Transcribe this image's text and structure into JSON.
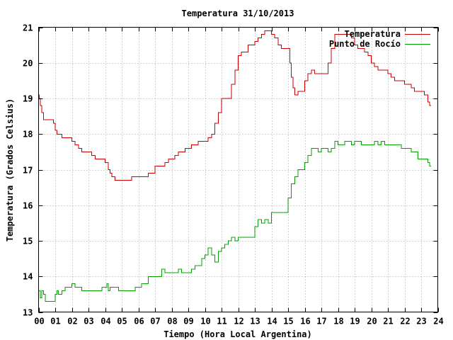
{
  "chart_data": {
    "type": "line",
    "title": "Temperatura 31/10/2013",
    "xlabel": "Tiempo (Hora Local Argentina)",
    "ylabel": "Temperatura (Grados Celsius)",
    "xlim": [
      0,
      24
    ],
    "ylim": [
      13,
      21
    ],
    "xticks": [
      "00",
      "01",
      "02",
      "03",
      "04",
      "05",
      "06",
      "07",
      "08",
      "09",
      "10",
      "11",
      "12",
      "13",
      "14",
      "15",
      "16",
      "17",
      "18",
      "19",
      "20",
      "21",
      "22",
      "23",
      "24"
    ],
    "yticks": [
      "13",
      "14",
      "15",
      "16",
      "17",
      "18",
      "19",
      "20",
      "21"
    ],
    "grid": true,
    "legend_position": "top-right",
    "series": [
      {
        "name": "Temperatura",
        "color": "#cc0000",
        "x": [
          0.0,
          0.05,
          0.1,
          0.2,
          0.3,
          0.4,
          0.5,
          0.7,
          0.9,
          1.0,
          1.1,
          1.2,
          1.4,
          1.6,
          1.8,
          2.0,
          2.2,
          2.4,
          2.6,
          2.8,
          3.0,
          3.2,
          3.4,
          3.6,
          3.8,
          4.0,
          4.2,
          4.3,
          4.4,
          4.5,
          4.6,
          4.8,
          5.0,
          5.2,
          5.4,
          5.6,
          5.8,
          6.0,
          6.2,
          6.4,
          6.6,
          6.8,
          7.0,
          7.2,
          7.4,
          7.6,
          7.8,
          8.0,
          8.2,
          8.4,
          8.6,
          8.8,
          9.0,
          9.2,
          9.4,
          9.6,
          9.8,
          10.0,
          10.2,
          10.4,
          10.6,
          10.8,
          11.0,
          11.2,
          11.4,
          11.6,
          11.8,
          12.0,
          12.2,
          12.4,
          12.6,
          12.8,
          13.0,
          13.2,
          13.4,
          13.6,
          13.8,
          14.0,
          14.2,
          14.4,
          14.6,
          14.8,
          15.0,
          15.1,
          15.2,
          15.3,
          15.4,
          15.5,
          15.6,
          15.8,
          16.0,
          16.2,
          16.4,
          16.6,
          16.8,
          17.0,
          17.2,
          17.4,
          17.6,
          17.8,
          18.0,
          18.2,
          18.4,
          18.6,
          18.8,
          19.0,
          19.2,
          19.4,
          19.6,
          19.8,
          20.0,
          20.2,
          20.4,
          20.6,
          20.8,
          21.0,
          21.2,
          21.4,
          21.6,
          21.8,
          22.0,
          22.2,
          22.4,
          22.6,
          22.8,
          23.0,
          23.2,
          23.4,
          23.5,
          23.6
        ],
        "y": [
          19.1,
          19.0,
          18.8,
          18.6,
          18.4,
          18.4,
          18.4,
          18.4,
          18.3,
          18.1,
          18.0,
          18.0,
          17.9,
          17.9,
          17.9,
          17.8,
          17.7,
          17.6,
          17.5,
          17.5,
          17.5,
          17.4,
          17.3,
          17.3,
          17.3,
          17.2,
          17.0,
          16.9,
          16.8,
          16.8,
          16.7,
          16.7,
          16.7,
          16.7,
          16.7,
          16.8,
          16.8,
          16.8,
          16.8,
          16.8,
          16.9,
          16.9,
          17.1,
          17.1,
          17.1,
          17.2,
          17.3,
          17.3,
          17.4,
          17.5,
          17.5,
          17.6,
          17.6,
          17.7,
          17.7,
          17.8,
          17.8,
          17.8,
          17.9,
          18.0,
          18.3,
          18.6,
          19.0,
          19.0,
          19.0,
          19.4,
          19.8,
          20.2,
          20.3,
          20.3,
          20.5,
          20.5,
          20.6,
          20.7,
          20.8,
          20.9,
          20.9,
          20.8,
          20.7,
          20.5,
          20.4,
          20.4,
          20.4,
          20.0,
          19.6,
          19.3,
          19.1,
          19.1,
          19.2,
          19.2,
          19.5,
          19.7,
          19.8,
          19.7,
          19.7,
          19.7,
          19.7,
          20.0,
          20.4,
          20.8,
          20.8,
          20.8,
          20.8,
          20.8,
          20.7,
          20.5,
          20.4,
          20.4,
          20.3,
          20.2,
          20.0,
          19.9,
          19.8,
          19.8,
          19.8,
          19.7,
          19.6,
          19.5,
          19.5,
          19.5,
          19.4,
          19.4,
          19.3,
          19.2,
          19.2,
          19.2,
          19.1,
          18.9,
          18.8,
          18.8
        ]
      },
      {
        "name": "Punto de Rocío",
        "color": "#00a000",
        "x": [
          0.0,
          0.1,
          0.2,
          0.3,
          0.4,
          0.5,
          0.8,
          1.0,
          1.1,
          1.2,
          1.4,
          1.6,
          1.8,
          2.0,
          2.2,
          2.4,
          2.6,
          2.8,
          3.0,
          3.2,
          3.4,
          3.6,
          3.8,
          4.0,
          4.1,
          4.2,
          4.3,
          4.4,
          4.6,
          4.8,
          5.0,
          5.2,
          5.4,
          5.6,
          5.8,
          6.0,
          6.2,
          6.4,
          6.6,
          6.8,
          7.0,
          7.2,
          7.4,
          7.6,
          7.8,
          8.0,
          8.2,
          8.4,
          8.6,
          8.8,
          9.0,
          9.2,
          9.4,
          9.6,
          9.8,
          10.0,
          10.2,
          10.4,
          10.6,
          10.8,
          11.0,
          11.2,
          11.4,
          11.6,
          11.8,
          12.0,
          12.2,
          12.4,
          12.6,
          12.8,
          13.0,
          13.2,
          13.4,
          13.6,
          13.8,
          14.0,
          14.2,
          14.4,
          14.6,
          14.8,
          15.0,
          15.2,
          15.4,
          15.6,
          15.8,
          16.0,
          16.2,
          16.4,
          16.6,
          16.8,
          17.0,
          17.2,
          17.4,
          17.6,
          17.8,
          18.0,
          18.2,
          18.4,
          18.6,
          18.8,
          19.0,
          19.2,
          19.4,
          19.6,
          19.8,
          20.0,
          20.2,
          20.4,
          20.6,
          20.8,
          21.0,
          21.2,
          21.4,
          21.6,
          21.8,
          22.0,
          22.2,
          22.4,
          22.6,
          22.8,
          23.0,
          23.2,
          23.4,
          23.5,
          23.6
        ],
        "y": [
          13.6,
          13.4,
          13.6,
          13.5,
          13.3,
          13.3,
          13.3,
          13.5,
          13.6,
          13.5,
          13.6,
          13.7,
          13.7,
          13.8,
          13.7,
          13.7,
          13.6,
          13.6,
          13.6,
          13.6,
          13.6,
          13.6,
          13.7,
          13.7,
          13.8,
          13.6,
          13.7,
          13.7,
          13.7,
          13.6,
          13.6,
          13.6,
          13.6,
          13.6,
          13.7,
          13.7,
          13.8,
          13.8,
          14.0,
          14.0,
          14.0,
          14.0,
          14.2,
          14.1,
          14.1,
          14.1,
          14.1,
          14.2,
          14.1,
          14.1,
          14.1,
          14.2,
          14.3,
          14.3,
          14.5,
          14.6,
          14.8,
          14.6,
          14.4,
          14.7,
          14.8,
          14.9,
          15.0,
          15.1,
          15.0,
          15.1,
          15.1,
          15.1,
          15.1,
          15.1,
          15.4,
          15.6,
          15.5,
          15.6,
          15.5,
          15.8,
          15.8,
          15.8,
          15.8,
          15.8,
          16.2,
          16.6,
          16.8,
          17.0,
          17.0,
          17.2,
          17.4,
          17.6,
          17.6,
          17.5,
          17.6,
          17.6,
          17.5,
          17.6,
          17.8,
          17.7,
          17.7,
          17.8,
          17.8,
          17.7,
          17.8,
          17.8,
          17.7,
          17.7,
          17.7,
          17.7,
          17.8,
          17.7,
          17.8,
          17.7,
          17.7,
          17.7,
          17.7,
          17.7,
          17.6,
          17.6,
          17.6,
          17.5,
          17.5,
          17.3,
          17.3,
          17.3,
          17.2,
          17.1,
          17.1
        ]
      }
    ]
  }
}
